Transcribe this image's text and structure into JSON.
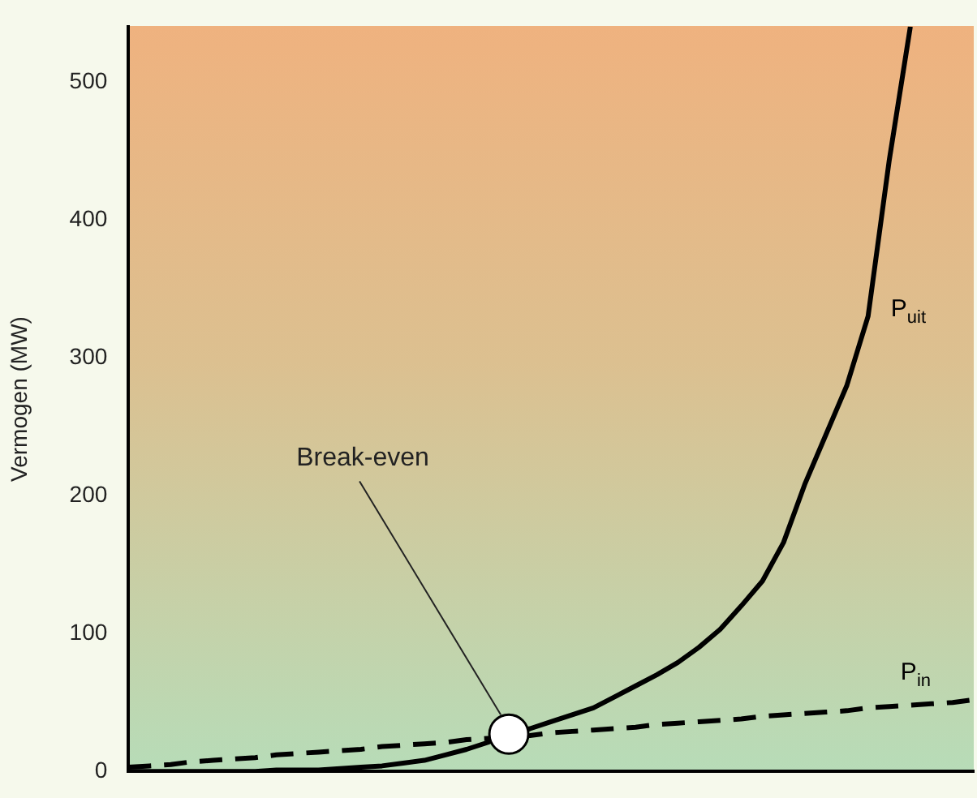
{
  "chart_data": {
    "type": "line",
    "ylabel": "Vermogen (MW)",
    "categories": [
      null,
      null,
      null,
      null,
      null,
      null,
      null,
      null,
      null,
      null,
      null,
      null,
      null,
      null,
      null,
      null,
      null,
      null,
      null,
      null,
      null,
      null,
      null,
      null,
      null,
      null,
      null,
      null,
      null,
      null,
      null,
      null,
      null,
      null,
      null,
      null,
      null,
      null,
      null,
      null,
      null
    ],
    "series": [
      {
        "name": "P$_{uit}$",
        "color": "#000000",
        "line_style": "solid",
        "values": [
          0,
          0,
          0,
          0,
          0,
          0,
          0,
          1,
          1,
          1,
          2,
          3,
          4,
          6,
          8,
          12,
          16,
          21,
          27,
          31,
          36,
          41,
          46,
          54,
          62,
          70,
          79,
          90,
          103,
          120,
          138,
          166,
          208,
          244,
          280,
          330,
          443,
          540,
          null,
          null,
          null
        ]
      },
      {
        "name": "P$_{in}$",
        "color": "#000000",
        "line_style": "dashed",
        "values": [
          3,
          4,
          5,
          7,
          8,
          9,
          10,
          12,
          13,
          14,
          15,
          16,
          18,
          19,
          20,
          21,
          23,
          24,
          25,
          26,
          28,
          29,
          30,
          31,
          32,
          34,
          35,
          36,
          37,
          38,
          40,
          41,
          42,
          43,
          44,
          46,
          47,
          48,
          49,
          50,
          52
        ]
      }
    ],
    "annotations": [
      "Break-even"
    ],
    "ylim": [
      0,
      540
    ],
    "yticks": [
      0,
      100,
      200,
      300,
      400,
      500
    ],
    "grid": false,
    "legend": false,
    "tick_labels": "y",
    "marker": "none"
  }
}
